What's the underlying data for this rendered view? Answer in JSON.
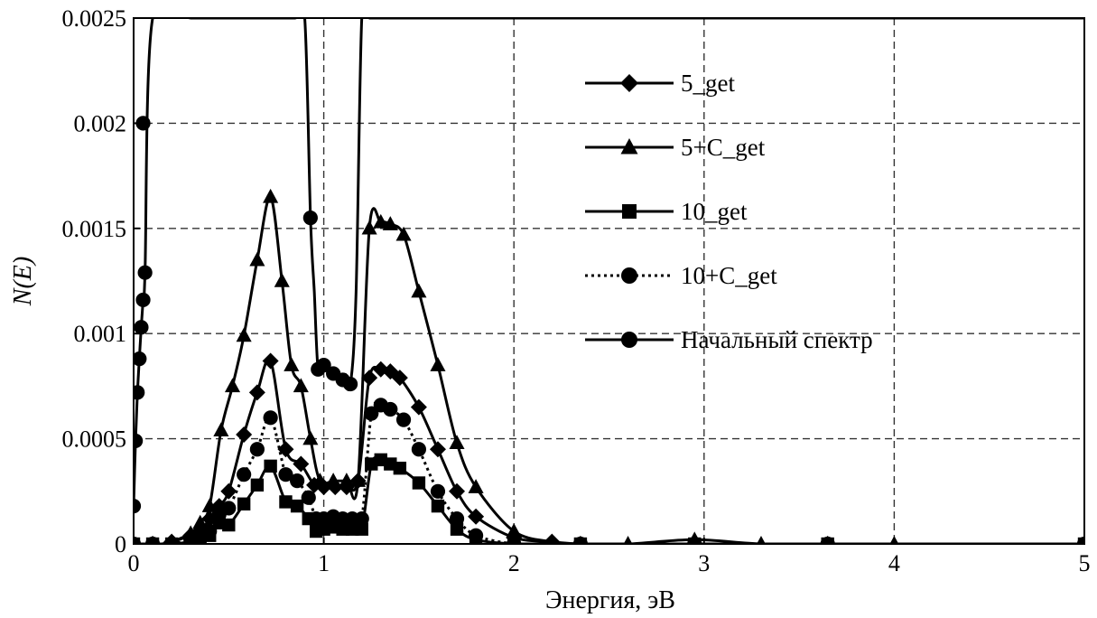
{
  "chart_data": {
    "type": "line",
    "title": "",
    "xlabel": "Энергия, эВ",
    "ylabel": "N(E)",
    "xlim": [
      0,
      5
    ],
    "ylim": [
      0,
      0.0025
    ],
    "x_ticks": [
      0,
      1,
      2,
      3,
      4,
      5
    ],
    "x_tick_labels": [
      "0",
      "1",
      "2",
      "3",
      "4",
      "5"
    ],
    "y_ticks": [
      0,
      0.0005,
      0.001,
      0.0015,
      0.002,
      0.0025
    ],
    "y_tick_labels": [
      "0",
      "0.0005",
      "0.001",
      "0.0015",
      "0.002",
      "0.0025"
    ],
    "grid": true,
    "legend_position": "top-right",
    "series": [
      {
        "name": "5_get",
        "marker": "diamond",
        "line": "solid",
        "x": [
          0.0,
          0.05,
          0.1,
          0.15,
          0.2,
          0.3,
          0.35,
          0.4,
          0.45,
          0.5,
          0.58,
          0.65,
          0.72,
          0.8,
          0.88,
          0.95,
          1.0,
          1.06,
          1.12,
          1.18,
          1.24,
          1.3,
          1.35,
          1.4,
          1.5,
          1.6,
          1.7,
          1.8,
          2.0,
          2.2,
          2.35,
          2.6,
          2.95,
          3.3,
          3.65,
          4.0,
          5.0
        ],
        "y": [
          0.0,
          0.0,
          0.0,
          0.0,
          1e-05,
          4e-05,
          6e-05,
          0.00012,
          0.00018,
          0.00025,
          0.00052,
          0.00072,
          0.00087,
          0.00045,
          0.00038,
          0.00028,
          0.00027,
          0.00027,
          0.00027,
          0.0003,
          0.00079,
          0.00083,
          0.00082,
          0.00079,
          0.00065,
          0.00045,
          0.00025,
          0.00013,
          3e-05,
          1e-05,
          0.0,
          0.0,
          0.0,
          0.0,
          0.0,
          0.0,
          0.0
        ]
      },
      {
        "name": "5+C_get",
        "marker": "triangle",
        "line": "solid",
        "x": [
          0.0,
          0.05,
          0.1,
          0.15,
          0.2,
          0.3,
          0.35,
          0.4,
          0.46,
          0.52,
          0.58,
          0.65,
          0.72,
          0.78,
          0.83,
          0.88,
          0.93,
          0.98,
          1.05,
          1.12,
          1.18,
          1.24,
          1.3,
          1.35,
          1.42,
          1.5,
          1.6,
          1.7,
          1.8,
          2.0,
          2.2,
          2.35,
          2.6,
          2.95,
          3.3,
          3.65,
          4.0,
          5.0
        ],
        "y": [
          0.0,
          0.0,
          0.0,
          0.0,
          1e-05,
          5e-05,
          0.0001,
          0.00018,
          0.00054,
          0.00075,
          0.00099,
          0.00135,
          0.00165,
          0.00125,
          0.00085,
          0.00075,
          0.0005,
          0.0003,
          0.0003,
          0.0003,
          0.0003,
          0.0015,
          0.00153,
          0.00152,
          0.00147,
          0.0012,
          0.00085,
          0.00048,
          0.00027,
          6e-05,
          1e-05,
          0.0,
          0.0,
          2e-05,
          0.0,
          0.0,
          0.0,
          0.0
        ]
      },
      {
        "name": "10_get",
        "marker": "square",
        "line": "solid",
        "x": [
          0.0,
          0.05,
          0.1,
          0.15,
          0.2,
          0.3,
          0.35,
          0.4,
          0.45,
          0.5,
          0.58,
          0.65,
          0.72,
          0.8,
          0.86,
          0.92,
          0.96,
          1.0,
          1.05,
          1.1,
          1.15,
          1.2,
          1.25,
          1.3,
          1.35,
          1.4,
          1.5,
          1.6,
          1.7,
          1.8,
          2.0,
          2.2,
          2.35,
          2.6,
          2.95,
          3.3,
          3.65,
          4.0,
          5.0
        ],
        "y": [
          0.0,
          0.0,
          0.0,
          0.0,
          0.0,
          1e-05,
          2e-05,
          4e-05,
          0.0001,
          9e-05,
          0.00019,
          0.00028,
          0.00037,
          0.0002,
          0.00018,
          0.00012,
          6e-05,
          7e-05,
          8e-05,
          7e-05,
          7e-05,
          7e-05,
          0.00038,
          0.0004,
          0.00038,
          0.00036,
          0.00029,
          0.00018,
          7e-05,
          2e-05,
          0.0,
          0.0,
          0.0,
          0.0,
          0.0,
          0.0,
          0.0,
          0.0,
          0.0
        ]
      },
      {
        "name": "10+C_get",
        "marker": "circle",
        "line": "dotted",
        "x": [
          0.0,
          0.05,
          0.1,
          0.15,
          0.2,
          0.3,
          0.35,
          0.4,
          0.45,
          0.5,
          0.58,
          0.65,
          0.72,
          0.8,
          0.86,
          0.92,
          0.96,
          1.0,
          1.05,
          1.1,
          1.15,
          1.2,
          1.25,
          1.3,
          1.35,
          1.42,
          1.5,
          1.6,
          1.7,
          1.8,
          2.0,
          2.2,
          2.35,
          2.6,
          2.95,
          3.3,
          3.65,
          4.0,
          5.0
        ],
        "y": [
          0.0,
          0.0,
          0.0,
          0.0,
          0.0,
          2e-05,
          4e-05,
          6e-05,
          0.00014,
          0.00017,
          0.00033,
          0.00045,
          0.0006,
          0.00033,
          0.0003,
          0.00022,
          0.00012,
          0.00012,
          0.00013,
          0.00012,
          0.00012,
          0.00012,
          0.00062,
          0.00066,
          0.00064,
          0.00059,
          0.00045,
          0.00025,
          0.00012,
          4e-05,
          0.0,
          0.0,
          0.0,
          0.0,
          0.0,
          0.0,
          0.0,
          0.0,
          0.0
        ]
      },
      {
        "name": "Начальный спектр",
        "marker": "circle",
        "line": "solid",
        "x": [
          0.0,
          0.01,
          0.02,
          0.03,
          0.04,
          0.05,
          0.06,
          0.1,
          0.3,
          0.5,
          0.7,
          0.85,
          0.9,
          0.93,
          0.95,
          0.97,
          1.0,
          1.05,
          1.1,
          1.14,
          1.17,
          1.2,
          1.24,
          1.3,
          1.5,
          2.0,
          5.0
        ],
        "y": [
          0.00018,
          0.00049,
          0.00072,
          0.00088,
          0.00103,
          0.00116,
          0.00129,
          0.0025,
          0.0025,
          0.0025,
          0.0025,
          0.0025,
          0.0025,
          0.00155,
          0.0012,
          0.00083,
          0.00085,
          0.00081,
          0.00078,
          0.00076,
          0.0012,
          0.0025,
          0.0025,
          0.0025,
          0.0025,
          0.0025,
          0.0025
        ],
        "visible_markers_x": [
          0.0,
          0.01,
          0.02,
          0.03,
          0.04,
          0.05,
          0.06,
          0.93,
          0.97,
          1.0,
          1.05,
          1.1,
          1.14
        ],
        "visible_markers_y": [
          0.00018,
          0.00049,
          0.00072,
          0.00088,
          0.00103,
          0.00116,
          0.00129,
          0.00155,
          0.00083,
          0.00085,
          0.00081,
          0.00078,
          0.00076
        ],
        "top_marker_x": 0.05,
        "top_marker_y": 0.002
      }
    ]
  }
}
